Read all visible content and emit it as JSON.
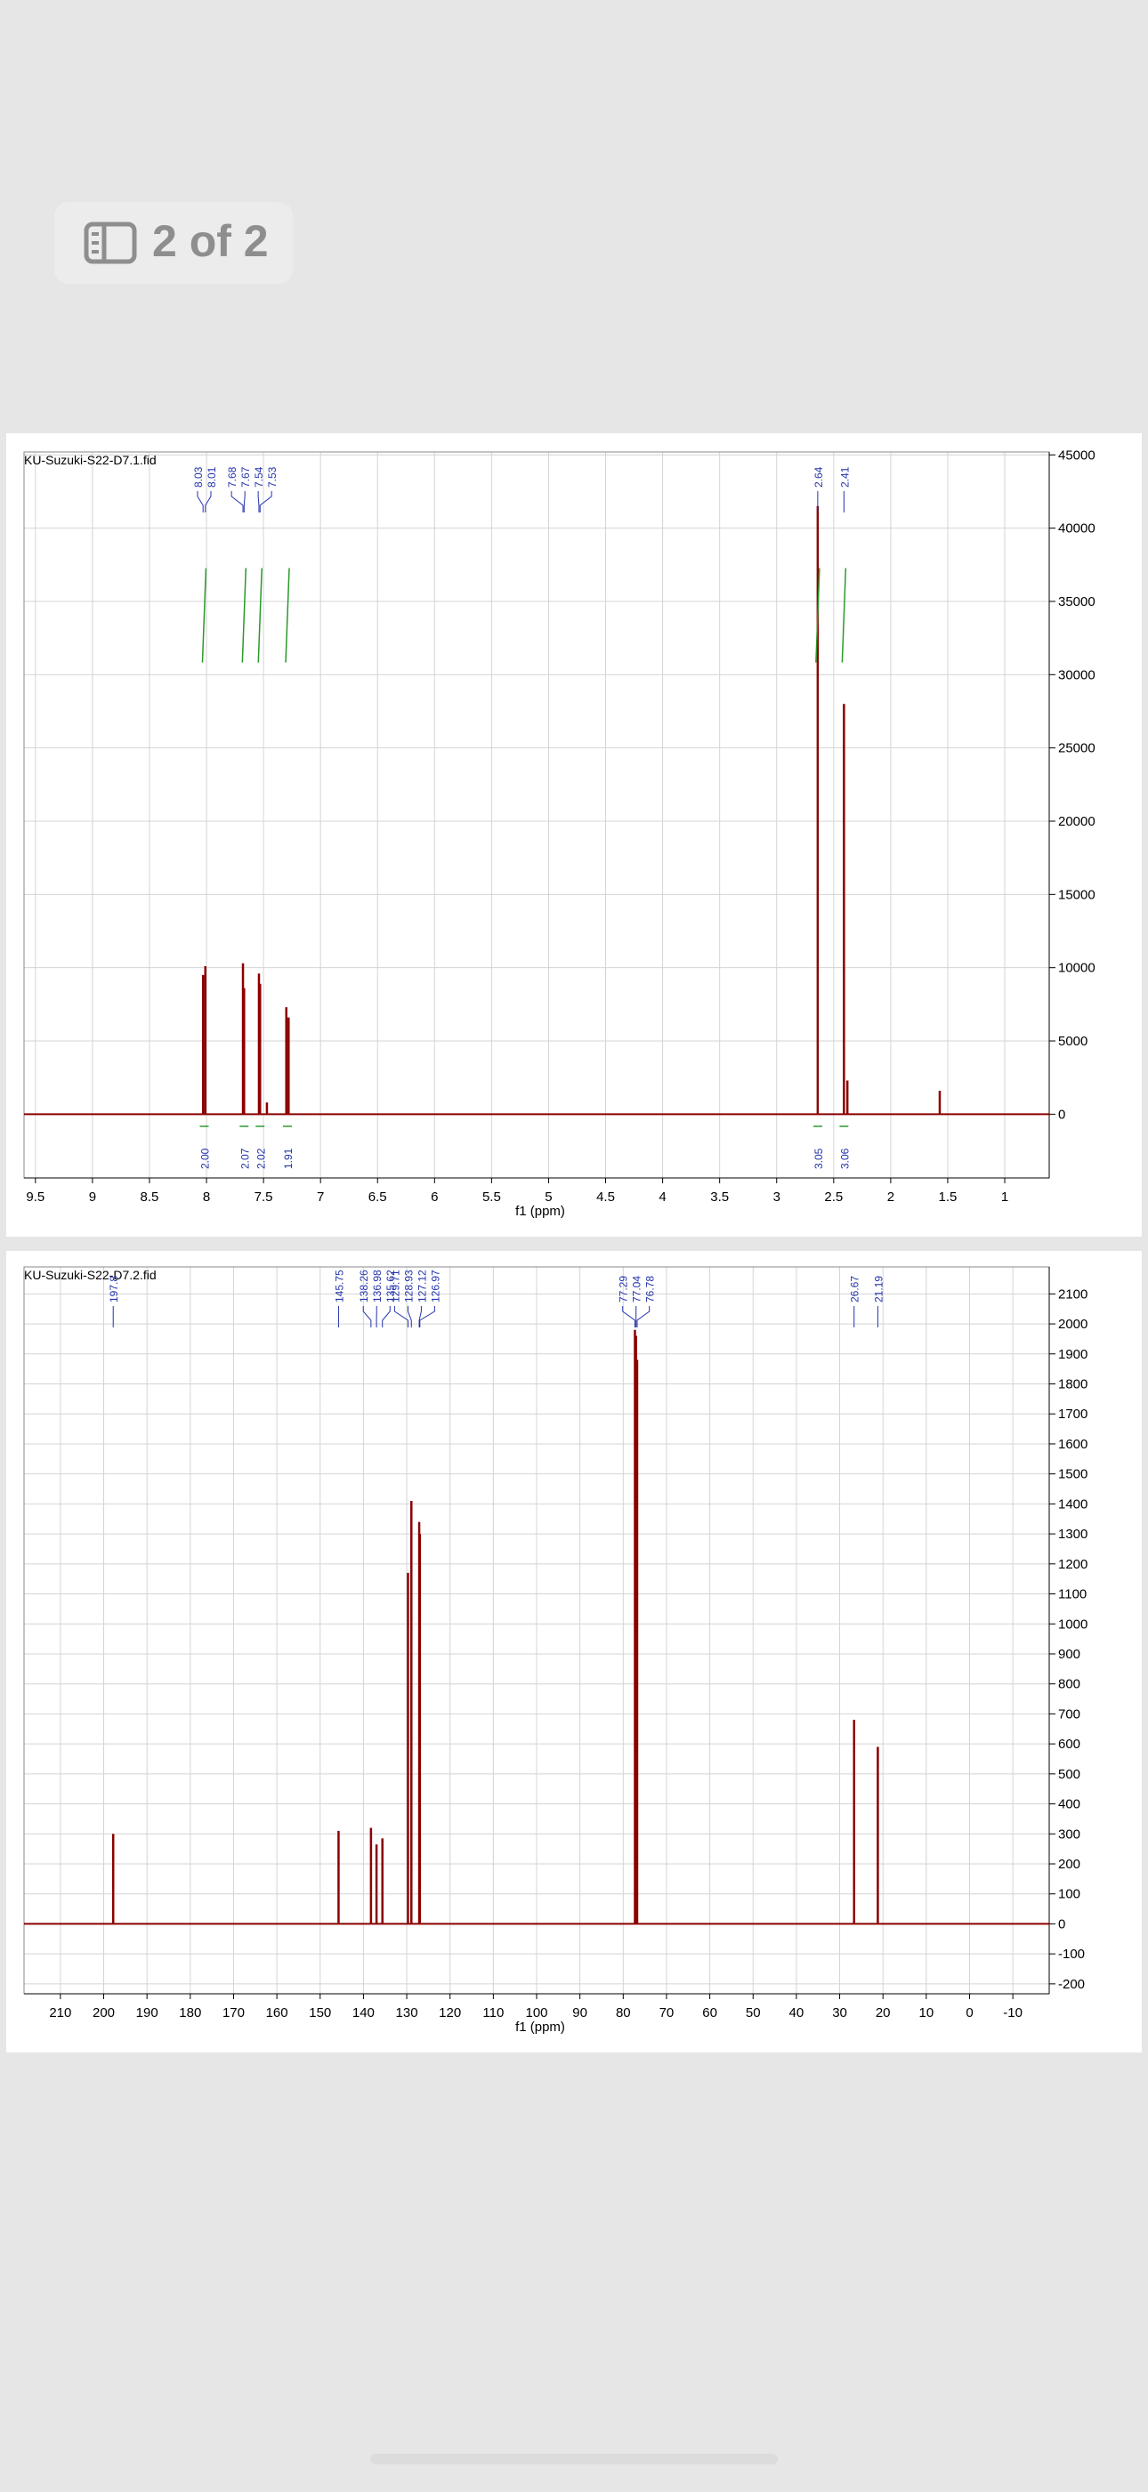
{
  "badge": {
    "text": "2 of 2"
  },
  "chart_data": [
    {
      "type": "spectrum",
      "title": "KU-Suzuki-S22-D7.1.fid",
      "x_label": "f1 (ppm)",
      "color": "#8b0000",
      "grid": true,
      "xlim": [
        9.6,
        0.61
      ],
      "xticks": [
        9.5,
        9.0,
        8.5,
        8.0,
        7.5,
        7.0,
        6.5,
        6.0,
        5.5,
        5.0,
        4.5,
        4.0,
        3.5,
        3.0,
        2.5,
        2.0,
        1.5,
        1.0
      ],
      "ylim": [
        -4350,
        45200
      ],
      "yticks": [
        0,
        5000,
        10000,
        15000,
        20000,
        25000,
        30000,
        35000,
        40000,
        45000
      ],
      "x": [
        8.03,
        8.01,
        7.68,
        7.67,
        7.54,
        7.53,
        7.47,
        7.3,
        7.28,
        2.64,
        2.41,
        2.38,
        1.57
      ],
      "values": [
        9500,
        10100,
        10300,
        8600,
        9600,
        8900,
        800,
        7300,
        6600,
        41500,
        28000,
        2300,
        1600
      ],
      "peak_labels": [
        8.03,
        8.01,
        7.68,
        7.67,
        7.54,
        7.53,
        2.64,
        2.41
      ],
      "integrals": [
        {
          "x": 8.02,
          "value": 2,
          "label": "2.00"
        },
        {
          "x": 7.67,
          "value": 2.07,
          "label": "2.07"
        },
        {
          "x": 7.53,
          "value": 2.02,
          "label": "2.02"
        },
        {
          "x": 7.29,
          "value": 1.91,
          "label": "1.91"
        },
        {
          "x": 2.64,
          "value": 3.05,
          "label": "3.05"
        },
        {
          "x": 2.41,
          "value": 3.06,
          "label": "3.06"
        }
      ]
    },
    {
      "type": "spectrum",
      "title": "KU-Suzuki-S22-D7.2.fid",
      "x_label": "f1 (ppm)",
      "color": "#8b0000",
      "grid": true,
      "xlim": [
        218.4,
        -18.4
      ],
      "xticks": [
        210,
        200,
        190,
        180,
        170,
        160,
        150,
        140,
        130,
        120,
        110,
        100,
        90,
        80,
        70,
        60,
        50,
        40,
        30,
        20,
        10,
        0,
        -10
      ],
      "ylim": [
        -233,
        2190
      ],
      "yticks": [
        -200,
        -100,
        0,
        100,
        200,
        300,
        400,
        500,
        600,
        700,
        800,
        900,
        1000,
        1100,
        1200,
        1300,
        1400,
        1500,
        1600,
        1700,
        1800,
        1900,
        2000,
        2100
      ],
      "x": [
        197.8,
        145.75,
        138.26,
        136.98,
        135.62,
        129.71,
        128.93,
        127.12,
        126.97,
        77.29,
        77.04,
        76.78,
        26.67,
        21.19
      ],
      "values": [
        300,
        310,
        320,
        265,
        285,
        1170,
        1410,
        1340,
        1300,
        1980,
        1960,
        1880,
        680,
        590
      ],
      "peak_labels": [
        197.8,
        145.75,
        138.26,
        136.98,
        135.62,
        129.71,
        128.93,
        127.12,
        126.97,
        77.29,
        77.04,
        76.78,
        26.67,
        21.19
      ]
    }
  ]
}
